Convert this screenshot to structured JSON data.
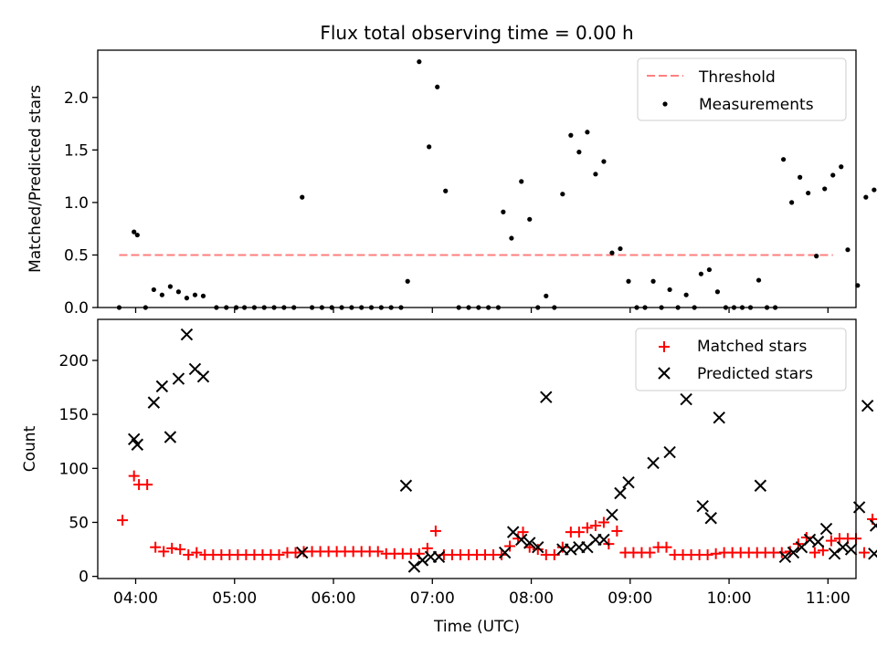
{
  "figure": {
    "title": "Flux total observing time = 0.00 h",
    "xlabel": "Time (UTC)",
    "colors": {
      "threshold": "#ff7f7f",
      "measurement": "#000000",
      "matched": "#ff0000",
      "predicted": "#000000"
    }
  },
  "chart_data": [
    {
      "type": "scatter",
      "ylabel": "Matched/Predicted stars",
      "xlim": [
        "03:37",
        "11:17"
      ],
      "ylim": [
        0,
        2.45
      ],
      "xticks": [
        "04:00",
        "05:00",
        "06:00",
        "07:00",
        "08:00",
        "09:00",
        "10:00",
        "11:00"
      ],
      "yticks": [
        "0.0",
        "0.5",
        "1.0",
        "1.5",
        "2.0"
      ],
      "grid": false,
      "legend_position": "top-right",
      "threshold": {
        "name": "Threshold",
        "x": [
          "03:50",
          "11:03"
        ],
        "y": 0.5
      },
      "series": [
        {
          "name": "Measurements",
          "marker": "dot",
          "points": [
            [
              "03:50",
              0
            ],
            [
              "03:59",
              0.72
            ],
            [
              "04:01",
              0.69
            ],
            [
              "04:06",
              0
            ],
            [
              "04:11",
              0.17
            ],
            [
              "04:16",
              0.12
            ],
            [
              "04:21",
              0.2
            ],
            [
              "04:26",
              0.15
            ],
            [
              "04:31",
              0.09
            ],
            [
              "04:36",
              0.12
            ],
            [
              "04:41",
              0.11
            ],
            [
              "04:49",
              0
            ],
            [
              "04:55",
              0
            ],
            [
              "05:01",
              0
            ],
            [
              "05:06",
              0
            ],
            [
              "05:12",
              0
            ],
            [
              "05:18",
              0
            ],
            [
              "05:24",
              0
            ],
            [
              "05:30",
              0
            ],
            [
              "05:36",
              0
            ],
            [
              "05:41",
              1.05
            ],
            [
              "05:47",
              0
            ],
            [
              "05:53",
              0
            ],
            [
              "05:59",
              0
            ],
            [
              "06:05",
              0
            ],
            [
              "06:11",
              0
            ],
            [
              "06:17",
              0
            ],
            [
              "06:23",
              0
            ],
            [
              "06:29",
              0
            ],
            [
              "06:35",
              0
            ],
            [
              "06:41",
              0
            ],
            [
              "06:45",
              0.25
            ],
            [
              "06:52",
              2.34
            ],
            [
              "06:58",
              1.53
            ],
            [
              "07:03",
              2.1
            ],
            [
              "07:08",
              1.11
            ],
            [
              "07:16",
              0
            ],
            [
              "07:22",
              0
            ],
            [
              "07:28",
              0
            ],
            [
              "07:34",
              0
            ],
            [
              "07:40",
              0
            ],
            [
              "07:43",
              0.91
            ],
            [
              "07:48",
              0.66
            ],
            [
              "07:54",
              1.2
            ],
            [
              "07:59",
              0.84
            ],
            [
              "08:04",
              0
            ],
            [
              "08:09",
              0.11
            ],
            [
              "08:14",
              0
            ],
            [
              "08:19",
              1.08
            ],
            [
              "08:24",
              1.64
            ],
            [
              "08:29",
              1.48
            ],
            [
              "08:34",
              1.67
            ],
            [
              "08:39",
              1.27
            ],
            [
              "08:44",
              1.39
            ],
            [
              "08:49",
              0.52
            ],
            [
              "08:54",
              0.56
            ],
            [
              "08:59",
              0.25
            ],
            [
              "09:04",
              0
            ],
            [
              "09:09",
              0
            ],
            [
              "09:14",
              0.25
            ],
            [
              "09:19",
              0
            ],
            [
              "09:24",
              0.17
            ],
            [
              "09:29",
              0
            ],
            [
              "09:34",
              0.12
            ],
            [
              "09:39",
              0
            ],
            [
              "09:43",
              0.32
            ],
            [
              "09:48",
              0.36
            ],
            [
              "09:53",
              0.15
            ],
            [
              "09:58",
              0
            ],
            [
              "10:03",
              0
            ],
            [
              "10:08",
              0
            ],
            [
              "10:13",
              0
            ],
            [
              "10:18",
              0.26
            ],
            [
              "10:23",
              0
            ],
            [
              "10:28",
              0
            ],
            [
              "10:33",
              1.41
            ],
            [
              "10:38",
              1.0
            ],
            [
              "10:43",
              1.24
            ],
            [
              "10:48",
              1.09
            ],
            [
              "10:53",
              0.49
            ],
            [
              "10:58",
              1.13
            ],
            [
              "11:03",
              1.26
            ],
            [
              "11:08",
              1.34
            ],
            [
              "11:12",
              0.55
            ],
            [
              "11:18",
              0.21
            ],
            [
              "11:23",
              1.05
            ],
            [
              "11:28",
              1.12
            ]
          ]
        }
      ]
    },
    {
      "type": "scatter",
      "ylabel": "Count",
      "xlim": [
        "03:37",
        "11:17"
      ],
      "ylim": [
        -2,
        238
      ],
      "xticks": [
        "04:00",
        "05:00",
        "06:00",
        "07:00",
        "08:00",
        "09:00",
        "10:00",
        "11:00"
      ],
      "yticks": [
        "0",
        "50",
        "100",
        "150",
        "200"
      ],
      "grid": false,
      "legend_position": "top-right",
      "series": [
        {
          "name": "Matched stars",
          "marker": "plus",
          "points": [
            [
              "03:52",
              52
            ],
            [
              "03:59",
              93
            ],
            [
              "04:02",
              85
            ],
            [
              "04:07",
              85
            ],
            [
              "04:12",
              27
            ],
            [
              "04:17",
              23
            ],
            [
              "04:22",
              26
            ],
            [
              "04:27",
              25
            ],
            [
              "04:32",
              20
            ],
            [
              "04:37",
              22
            ],
            [
              "04:42",
              20
            ],
            [
              "04:47",
              20
            ],
            [
              "04:52",
              20
            ],
            [
              "04:57",
              20
            ],
            [
              "05:02",
              20
            ],
            [
              "05:07",
              20
            ],
            [
              "05:12",
              20
            ],
            [
              "05:17",
              20
            ],
            [
              "05:22",
              20
            ],
            [
              "05:27",
              20
            ],
            [
              "05:32",
              22
            ],
            [
              "05:37",
              22
            ],
            [
              "05:42",
              23
            ],
            [
              "05:47",
              23
            ],
            [
              "05:52",
              23
            ],
            [
              "05:57",
              23
            ],
            [
              "06:02",
              23
            ],
            [
              "06:07",
              23
            ],
            [
              "06:12",
              23
            ],
            [
              "06:17",
              23
            ],
            [
              "06:22",
              23
            ],
            [
              "06:27",
              23
            ],
            [
              "06:32",
              21
            ],
            [
              "06:37",
              21
            ],
            [
              "06:42",
              21
            ],
            [
              "06:47",
              21
            ],
            [
              "06:52",
              21
            ],
            [
              "06:57",
              26
            ],
            [
              "07:02",
              42
            ],
            [
              "07:07",
              20
            ],
            [
              "07:12",
              20
            ],
            [
              "07:17",
              20
            ],
            [
              "07:22",
              20
            ],
            [
              "07:27",
              20
            ],
            [
              "07:32",
              20
            ],
            [
              "07:37",
              20
            ],
            [
              "07:42",
              20
            ],
            [
              "07:47",
              28
            ],
            [
              "07:52",
              35
            ],
            [
              "07:55",
              41
            ],
            [
              "07:59",
              27
            ],
            [
              "08:04",
              25
            ],
            [
              "08:09",
              20
            ],
            [
              "08:14",
              20
            ],
            [
              "08:19",
              27
            ],
            [
              "08:24",
              41
            ],
            [
              "08:29",
              41
            ],
            [
              "08:34",
              45
            ],
            [
              "08:39",
              47
            ],
            [
              "08:44",
              50
            ],
            [
              "08:47",
              30
            ],
            [
              "08:52",
              42
            ],
            [
              "08:57",
              22
            ],
            [
              "09:02",
              22
            ],
            [
              "09:07",
              22
            ],
            [
              "09:12",
              22
            ],
            [
              "09:17",
              27
            ],
            [
              "09:22",
              27
            ],
            [
              "09:27",
              20
            ],
            [
              "09:32",
              20
            ],
            [
              "09:37",
              20
            ],
            [
              "09:42",
              20
            ],
            [
              "09:47",
              20
            ],
            [
              "09:52",
              21
            ],
            [
              "09:57",
              22
            ],
            [
              "10:02",
              22
            ],
            [
              "10:07",
              22
            ],
            [
              "10:12",
              22
            ],
            [
              "10:17",
              22
            ],
            [
              "10:22",
              22
            ],
            [
              "10:27",
              22
            ],
            [
              "10:32",
              22
            ],
            [
              "10:37",
              23
            ],
            [
              "10:42",
              30
            ],
            [
              "10:47",
              36
            ],
            [
              "10:52",
              22
            ],
            [
              "10:57",
              24
            ],
            [
              "11:02",
              33
            ],
            [
              "11:07",
              35
            ],
            [
              "11:12",
              35
            ],
            [
              "11:17",
              35
            ],
            [
              "11:22",
              22
            ],
            [
              "11:27",
              53
            ]
          ]
        },
        {
          "name": "Predicted stars",
          "marker": "x",
          "points": [
            [
              "03:59",
              127
            ],
            [
              "04:01",
              122
            ],
            [
              "04:11",
              161
            ],
            [
              "04:16",
              176
            ],
            [
              "04:21",
              129
            ],
            [
              "04:26",
              183
            ],
            [
              "04:31",
              224
            ],
            [
              "04:36",
              192
            ],
            [
              "04:41",
              185
            ],
            [
              "05:41",
              22
            ],
            [
              "06:44",
              84
            ],
            [
              "06:49",
              9
            ],
            [
              "06:54",
              15
            ],
            [
              "06:59",
              18
            ],
            [
              "07:04",
              18
            ],
            [
              "07:44",
              22
            ],
            [
              "07:49",
              41
            ],
            [
              "07:54",
              34
            ],
            [
              "07:59",
              31
            ],
            [
              "08:04",
              27
            ],
            [
              "08:09",
              166
            ],
            [
              "08:19",
              25
            ],
            [
              "08:24",
              25
            ],
            [
              "08:29",
              27
            ],
            [
              "08:34",
              27
            ],
            [
              "08:39",
              34
            ],
            [
              "08:44",
              34
            ],
            [
              "08:49",
              57
            ],
            [
              "08:54",
              77
            ],
            [
              "08:59",
              87
            ],
            [
              "09:14",
              105
            ],
            [
              "09:24",
              115
            ],
            [
              "09:34",
              164
            ],
            [
              "09:44",
              65
            ],
            [
              "09:49",
              54
            ],
            [
              "09:54",
              147
            ],
            [
              "10:19",
              84
            ],
            [
              "10:34",
              18
            ],
            [
              "10:39",
              22
            ],
            [
              "10:44",
              27
            ],
            [
              "10:49",
              34
            ],
            [
              "10:54",
              32
            ],
            [
              "10:59",
              44
            ],
            [
              "11:04",
              21
            ],
            [
              "11:09",
              27
            ],
            [
              "11:14",
              25
            ],
            [
              "11:19",
              64
            ],
            [
              "11:24",
              158
            ],
            [
              "11:28",
              21
            ],
            [
              "11:29",
              47
            ]
          ]
        }
      ]
    }
  ]
}
